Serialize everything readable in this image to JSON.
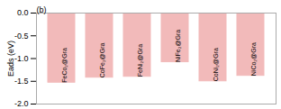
{
  "chart_data": {
    "type": "bar",
    "title": "(b)",
    "categories": [
      "FeCo₂@Gra",
      "CoFe₂@Gra",
      "FeNi₂@Gra",
      "NiFe₂@Gra",
      "CoNi₂@Gra",
      "NiCo₂@Gra"
    ],
    "values": [
      -1.53,
      -1.42,
      -1.4,
      -1.08,
      -1.5,
      -1.38
    ],
    "color": "#f2baba",
    "ylabel": "Eads (eV)",
    "ylim": [
      -2.0,
      0.0
    ],
    "yticks": [
      {
        "value": 0.0,
        "label": "0.0"
      },
      {
        "value": -0.5,
        "label": "-0.5"
      },
      {
        "value": -1.0,
        "label": "-1.0"
      },
      {
        "value": -1.5,
        "label": "-1.5"
      },
      {
        "value": -2.0,
        "label": "-2.0"
      }
    ],
    "tick_labels": "y",
    "grid": false
  }
}
